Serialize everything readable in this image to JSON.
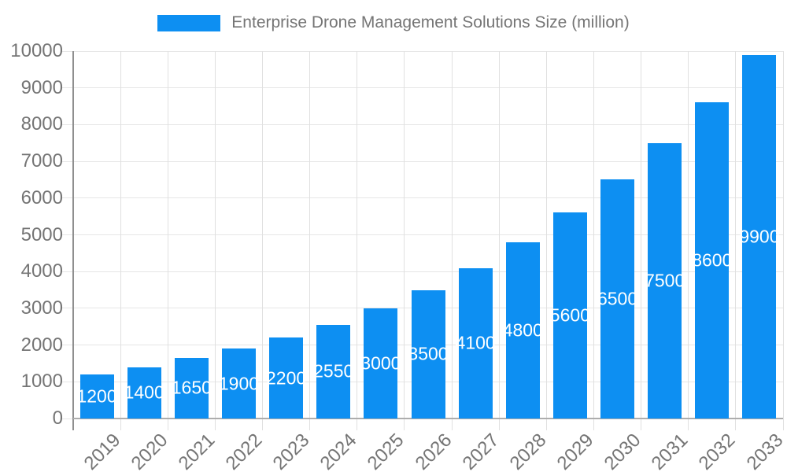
{
  "legend": {
    "label": "Enterprise Drone Management Solutions Size (million)"
  },
  "chart_data": {
    "type": "bar",
    "title": "Enterprise Drone Management Solutions Size (million)",
    "categories": [
      "2019",
      "2020",
      "2021",
      "2022",
      "2023",
      "2024",
      "2025",
      "2026",
      "2027",
      "2028",
      "2029",
      "2030",
      "2031",
      "2032",
      "2033"
    ],
    "values": [
      1200,
      1400,
      1650,
      1900,
      2200,
      2550,
      3000,
      3500,
      4100,
      4800,
      5600,
      6500,
      7500,
      8600,
      9900
    ],
    "xlabel": "",
    "ylabel": "",
    "ylim": [
      0,
      10000
    ],
    "ytick_step": 1000,
    "yticks": [
      0,
      1000,
      2000,
      3000,
      4000,
      5000,
      6000,
      7000,
      8000,
      9000,
      10000
    ],
    "grid": true,
    "legend_position": "top",
    "value_labels": "inside-center",
    "x_tick_rotation_deg": -45,
    "colors": {
      "bar": "#0d8ff2",
      "value_label": "#ffffff",
      "axis_text": "#757575",
      "grid_h": "#e6e6e6",
      "grid_v": "#e0e0e0",
      "axis_line_left": "#8f8f8f",
      "axis_line_bottom": "#adadad",
      "background": "#ffffff"
    }
  }
}
